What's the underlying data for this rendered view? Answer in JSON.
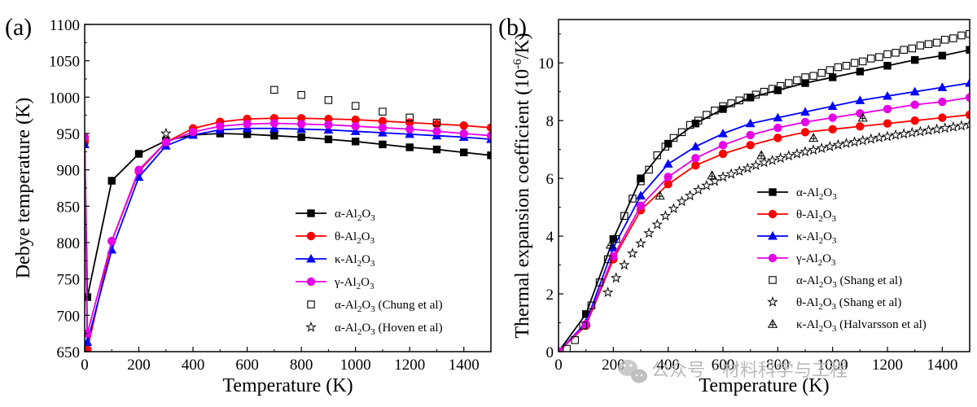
{
  "colors": {
    "black": "#000000",
    "red": "#ff0000",
    "blue": "#0000ff",
    "magenta": "#e600e6",
    "watermark": "#b9b9b9"
  },
  "watermark": {
    "text": "公众号 · 材料科学与工程",
    "icon": "wechat-icon"
  },
  "chart_data": [
    {
      "id": "a",
      "panel_label": "(a)",
      "type": "line",
      "xlabel": "Temperature (K)",
      "ylabel": "Debye temperature (K)",
      "xlim": [
        0,
        1500
      ],
      "ylim": [
        650,
        1100
      ],
      "xticks": [
        0,
        200,
        400,
        600,
        800,
        1000,
        1200,
        1400
      ],
      "yticks": [
        650,
        700,
        750,
        800,
        850,
        900,
        950,
        1000,
        1050,
        1100
      ],
      "legend_position": "center-right",
      "series": [
        {
          "name": "α-Al2O3",
          "label_pre": "α-Al",
          "sub1": "2",
          "label_mid": "O",
          "sub2": "3",
          "label_post": "",
          "color": "black",
          "marker": "square",
          "marker_fill": "filled",
          "line": true,
          "x": [
            0,
            10,
            100,
            200,
            300,
            400,
            500,
            600,
            700,
            800,
            900,
            1000,
            1100,
            1200,
            1300,
            1400,
            1500
          ],
          "y": [
            940,
            725,
            885,
            922,
            940,
            948,
            950,
            949,
            947,
            945,
            942,
            939,
            935,
            931,
            928,
            924,
            920
          ]
        },
        {
          "name": "θ-Al2O3",
          "label_pre": "θ-Al",
          "sub1": "2",
          "label_mid": "O",
          "sub2": "3",
          "label_post": "",
          "color": "red",
          "marker": "circle",
          "marker_fill": "filled",
          "line": true,
          "x": [
            0,
            10,
            100,
            200,
            300,
            400,
            500,
            600,
            700,
            800,
            900,
            1000,
            1100,
            1200,
            1300,
            1400,
            1500
          ],
          "y": [
            940,
            653,
            802,
            898,
            938,
            957,
            966,
            970,
            971,
            971,
            970,
            969,
            967,
            965,
            963,
            961,
            958
          ]
        },
        {
          "name": "κ-Al2O3",
          "label_pre": "κ-Al",
          "sub1": "2",
          "label_mid": "O",
          "sub2": "3",
          "label_post": "",
          "color": "blue",
          "marker": "triangle",
          "marker_fill": "filled",
          "line": true,
          "x": [
            0,
            10,
            100,
            200,
            300,
            400,
            500,
            600,
            700,
            800,
            900,
            1000,
            1100,
            1200,
            1300,
            1400,
            1500
          ],
          "y": [
            935,
            663,
            790,
            890,
            933,
            948,
            955,
            957,
            957,
            956,
            955,
            953,
            951,
            949,
            947,
            945,
            942
          ]
        },
        {
          "name": "γ-Al2O3",
          "label_pre": "γ-Al",
          "sub1": "2",
          "label_mid": "O",
          "sub2": "3",
          "label_post": "",
          "color": "magenta",
          "marker": "circle",
          "marker_fill": "filled",
          "line": true,
          "x": [
            0,
            10,
            100,
            200,
            300,
            400,
            500,
            600,
            700,
            800,
            900,
            1000,
            1100,
            1200,
            1300,
            1400,
            1500
          ],
          "y": [
            945,
            675,
            802,
            900,
            938,
            952,
            960,
            963,
            964,
            963,
            962,
            960,
            958,
            956,
            953,
            950,
            947
          ]
        },
        {
          "name": "α-Al2O3 (Chung et al)",
          "label_pre": "α-Al",
          "sub1": "2",
          "label_mid": "O",
          "sub2": "3",
          "label_post": " (Chung et al)",
          "color": "black",
          "marker": "square",
          "marker_fill": "open",
          "line": false,
          "x": [
            700,
            800,
            900,
            1000,
            1100,
            1200,
            1300
          ],
          "y": [
            1010,
            1003,
            996,
            988,
            980,
            972,
            965
          ]
        },
        {
          "name": "α-Al2O3 (Hoven et al)",
          "label_pre": "α-Al",
          "sub1": "2",
          "label_mid": "O",
          "sub2": "3",
          "label_post": " (Hoven et al)",
          "color": "black",
          "marker": "star",
          "marker_fill": "open",
          "line": false,
          "x": [
            300
          ],
          "y": [
            950
          ]
        }
      ]
    },
    {
      "id": "b",
      "panel_label": "(b)",
      "type": "line",
      "xlabel": "Temperature (K)",
      "ylabel_pre": "Thermal expansion coefficient (10",
      "ylabel_sup": "-6",
      "ylabel_post": "/K)",
      "xlim": [
        0,
        1500
      ],
      "ylim": [
        0,
        11.5
      ],
      "xticks": [
        0,
        200,
        400,
        600,
        800,
        1000,
        1200,
        1400
      ],
      "yticks": [
        0,
        2,
        4,
        6,
        8,
        10
      ],
      "legend_position": "lower-right",
      "series": [
        {
          "name": "α-Al2O3",
          "label_pre": "α-Al",
          "sub1": "2",
          "label_mid": "O",
          "sub2": "3",
          "label_post": "",
          "color": "black",
          "marker": "square",
          "marker_fill": "filled",
          "line": true,
          "x": [
            0,
            100,
            200,
            300,
            400,
            500,
            600,
            700,
            800,
            900,
            1000,
            1100,
            1200,
            1300,
            1400,
            1500
          ],
          "y": [
            0,
            1.3,
            3.9,
            6.0,
            7.2,
            7.9,
            8.4,
            8.8,
            9.05,
            9.3,
            9.5,
            9.7,
            9.9,
            10.1,
            10.25,
            10.45
          ]
        },
        {
          "name": "θ-Al2O3",
          "label_pre": "θ-Al",
          "sub1": "2",
          "label_mid": "O",
          "sub2": "3",
          "label_post": "",
          "color": "red",
          "marker": "circle",
          "marker_fill": "filled",
          "line": true,
          "x": [
            0,
            100,
            200,
            300,
            400,
            500,
            600,
            700,
            800,
            900,
            1000,
            1100,
            1200,
            1300,
            1400,
            1500
          ],
          "y": [
            0,
            0.9,
            3.2,
            4.9,
            5.8,
            6.45,
            6.85,
            7.15,
            7.4,
            7.6,
            7.7,
            7.8,
            7.9,
            8.0,
            8.1,
            8.2
          ]
        },
        {
          "name": "κ-Al2O3",
          "label_pre": "κ-Al",
          "sub1": "2",
          "label_mid": "O",
          "sub2": "3",
          "label_post": "",
          "color": "blue",
          "marker": "triangle",
          "marker_fill": "filled",
          "line": true,
          "x": [
            0,
            100,
            200,
            300,
            400,
            500,
            600,
            700,
            800,
            900,
            1000,
            1100,
            1200,
            1300,
            1400,
            1500
          ],
          "y": [
            0,
            1.0,
            3.6,
            5.4,
            6.5,
            7.1,
            7.55,
            7.9,
            8.1,
            8.3,
            8.5,
            8.7,
            8.85,
            9.0,
            9.15,
            9.3
          ]
        },
        {
          "name": "γ-Al2O3",
          "label_pre": "γ-Al",
          "sub1": "2",
          "label_mid": "O",
          "sub2": "3",
          "label_post": "",
          "color": "magenta",
          "marker": "circle",
          "marker_fill": "filled",
          "line": true,
          "x": [
            0,
            100,
            200,
            300,
            400,
            500,
            600,
            700,
            800,
            900,
            1000,
            1100,
            1200,
            1300,
            1400,
            1500
          ],
          "y": [
            0,
            0.95,
            3.3,
            5.05,
            6.05,
            6.7,
            7.15,
            7.5,
            7.75,
            7.95,
            8.1,
            8.25,
            8.4,
            8.55,
            8.65,
            8.8
          ]
        },
        {
          "name": "α-Al2O3 (Shang et al)",
          "label_pre": "α-Al",
          "sub1": "2",
          "label_mid": "O",
          "sub2": "3",
          "label_post": " (Shang et al)",
          "color": "black",
          "marker": "square",
          "marker_fill": "open",
          "line": false,
          "x": [
            30,
            60,
            90,
            120,
            150,
            180,
            210,
            240,
            270,
            300,
            330,
            360,
            390,
            420,
            450,
            480,
            510,
            540,
            570,
            600,
            630,
            660,
            690,
            720,
            750,
            780,
            810,
            840,
            870,
            900,
            930,
            960,
            990,
            1020,
            1050,
            1080,
            1110,
            1140,
            1170,
            1200,
            1230,
            1260,
            1290,
            1320,
            1350,
            1380,
            1410,
            1440,
            1470,
            1500
          ],
          "y": [
            0.1,
            0.4,
            0.9,
            1.6,
            2.4,
            3.2,
            3.9,
            4.7,
            5.3,
            5.9,
            6.3,
            6.8,
            7.1,
            7.4,
            7.6,
            7.85,
            8.0,
            8.2,
            8.35,
            8.5,
            8.6,
            8.7,
            8.8,
            8.9,
            9.0,
            9.1,
            9.2,
            9.3,
            9.4,
            9.5,
            9.55,
            9.65,
            9.75,
            9.85,
            9.9,
            10.0,
            10.05,
            10.15,
            10.2,
            10.3,
            10.35,
            10.45,
            10.5,
            10.6,
            10.65,
            10.7,
            10.8,
            10.85,
            10.95,
            11.0
          ]
        },
        {
          "name": "θ-Al2O3 (Shang et al)",
          "label_pre": "θ-Al",
          "sub1": "2",
          "label_mid": "O",
          "sub2": "3",
          "label_post": " (Shang et al)",
          "color": "black",
          "marker": "star",
          "marker_fill": "open",
          "line": false,
          "x": [
            180,
            210,
            240,
            270,
            300,
            330,
            360,
            390,
            420,
            450,
            480,
            510,
            540,
            570,
            600,
            630,
            660,
            690,
            720,
            750,
            780,
            810,
            840,
            870,
            900,
            930,
            960,
            990,
            1020,
            1050,
            1080,
            1110,
            1140,
            1170,
            1200,
            1230,
            1260,
            1290,
            1320,
            1350,
            1380,
            1410,
            1440,
            1470,
            1500
          ],
          "y": [
            2.05,
            2.55,
            3.0,
            3.4,
            3.75,
            4.1,
            4.4,
            4.7,
            4.95,
            5.2,
            5.4,
            5.6,
            5.75,
            5.9,
            6.05,
            6.15,
            6.25,
            6.35,
            6.45,
            6.55,
            6.62,
            6.7,
            6.78,
            6.85,
            6.92,
            6.98,
            7.04,
            7.1,
            7.16,
            7.21,
            7.26,
            7.31,
            7.36,
            7.41,
            7.45,
            7.5,
            7.54,
            7.58,
            7.62,
            7.66,
            7.7,
            7.74,
            7.78,
            7.82,
            7.86
          ]
        },
        {
          "name": "κ-Al2O3 (Halvarsson et al)",
          "label_pre": "κ-Al",
          "sub1": "2",
          "label_mid": "O",
          "sub2": "3",
          "label_post": " (Halvarsson et al)",
          "color": "black",
          "marker": "asterisk-triangle",
          "marker_fill": "open",
          "line": false,
          "x": [
            190,
            370,
            560,
            740,
            930,
            1110
          ],
          "y": [
            3.7,
            5.4,
            6.1,
            6.8,
            7.4,
            8.1
          ]
        }
      ]
    }
  ]
}
